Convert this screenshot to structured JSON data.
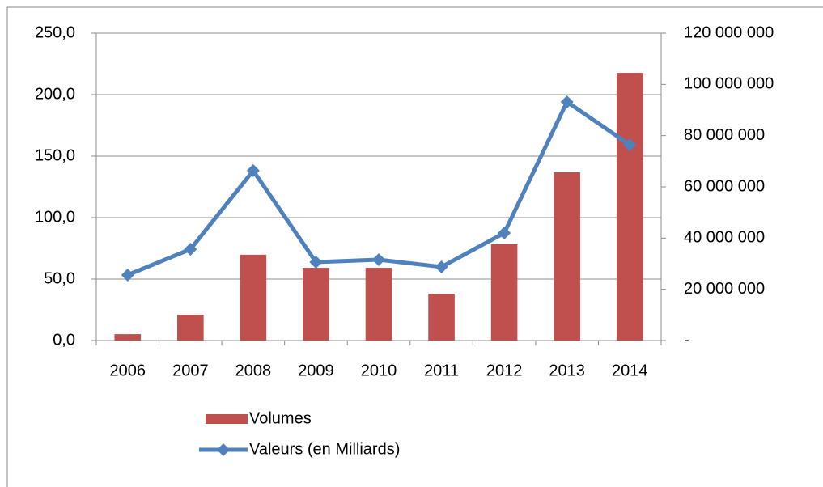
{
  "chart_data": {
    "type": "bar_line",
    "categories": [
      "2006",
      "2007",
      "2008",
      "2009",
      "2010",
      "2011",
      "2012",
      "2013",
      "2014"
    ],
    "series": [
      {
        "name": "Volumes",
        "type": "bar",
        "axis": "y2",
        "color": "#c0504d",
        "values": [
          2500000,
          10100000,
          33500000,
          28400000,
          28400000,
          18300000,
          37600000,
          65700000,
          104500000
        ]
      },
      {
        "name": "Valeurs (en Milliards)",
        "type": "line",
        "axis": "y",
        "color": "#4f81bd",
        "values": [
          53.3,
          74.3,
          138.2,
          63.8,
          65.8,
          59.9,
          87.5,
          194.1,
          159.2
        ]
      }
    ],
    "ylim": [
      0,
      250
    ],
    "yticks": [
      {
        "value": 0,
        "label": "0,0"
      },
      {
        "value": 50,
        "label": "50,0"
      },
      {
        "value": 100,
        "label": "100,0"
      },
      {
        "value": 150,
        "label": "150,0"
      },
      {
        "value": 200,
        "label": "200,0"
      },
      {
        "value": 250,
        "label": "250,0"
      }
    ],
    "y2lim": [
      0,
      120000000
    ],
    "y2ticks": [
      {
        "value": 0,
        "label": "-"
      },
      {
        "value": 20000000,
        "label": "20 000 000"
      },
      {
        "value": 40000000,
        "label": "40 000 000"
      },
      {
        "value": 60000000,
        "label": "60 000 000"
      },
      {
        "value": 80000000,
        "label": "80 000 000"
      },
      {
        "value": 100000000,
        "label": "100 000 000"
      },
      {
        "value": 120000000,
        "label": "120 000 000"
      }
    ],
    "grid": true
  }
}
